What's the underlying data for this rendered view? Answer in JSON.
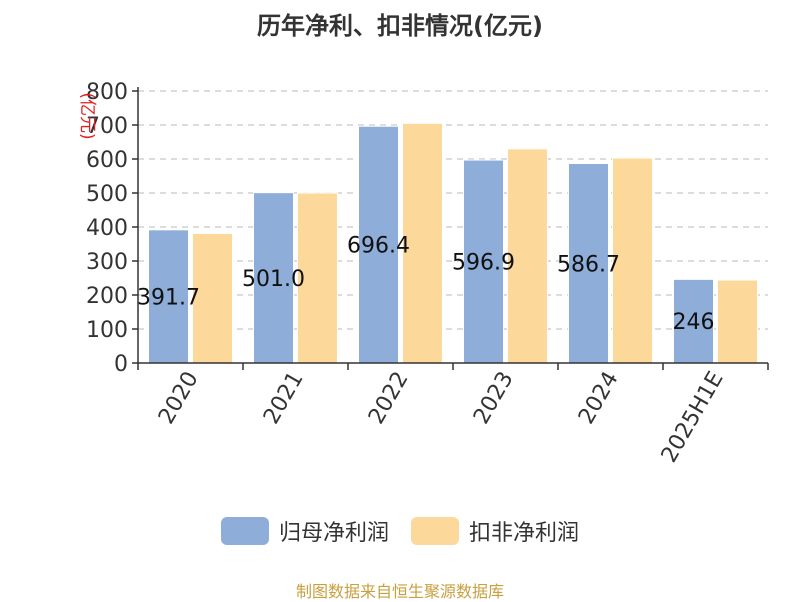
{
  "chart_data": {
    "type": "bar",
    "title": "历年净利、扣非情况(亿元)",
    "ylabel": "(亿元)",
    "categories": [
      "2020",
      "2021",
      "2022",
      "2023",
      "2024",
      "2025H1E"
    ],
    "ylim": [
      0,
      800
    ],
    "yticks": [
      0,
      100,
      200,
      300,
      400,
      500,
      600,
      700,
      800
    ],
    "grid": true,
    "legend_position": "bottom",
    "series": [
      {
        "name": "归母净利润",
        "color": "#8eadd9",
        "values": [
          391.7,
          501.0,
          696.4,
          596.9,
          586.7,
          246
        ],
        "labels": [
          "391.7",
          "501.0",
          "696.4",
          "596.9",
          "586.7",
          "246"
        ]
      },
      {
        "name": "扣非净利润",
        "color": "#fdd89b",
        "values": [
          381,
          500,
          705,
          630,
          603,
          244
        ]
      }
    ]
  },
  "source_text": "制图数据来自恒生聚源数据库"
}
